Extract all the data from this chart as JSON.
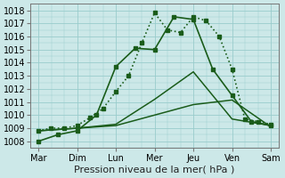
{
  "background_color": "#cce8e8",
  "grid_color": "#99cccc",
  "line_color": "#1a5c1a",
  "xlabel": "Pression niveau de la mer( hPa )",
  "xlabels": [
    "Mar",
    "Dim",
    "Lun",
    "Mer",
    "Jeu",
    "Ven",
    "Sam"
  ],
  "x_positions": [
    0,
    1,
    2,
    3,
    4,
    5,
    6
  ],
  "ylim": [
    1007.5,
    1018.5
  ],
  "yticks": [
    1008,
    1009,
    1010,
    1011,
    1012,
    1013,
    1014,
    1015,
    1016,
    1017,
    1018
  ],
  "series": [
    {
      "x": [
        0,
        0.33,
        0.67,
        1.0,
        1.33,
        1.67,
        2.0,
        2.33,
        2.67,
        3.0,
        3.33,
        3.67,
        4.0,
        4.33,
        4.67,
        5.0,
        5.33,
        5.67,
        6.0
      ],
      "y": [
        1008.8,
        1009.0,
        1009.0,
        1009.2,
        1009.8,
        1010.5,
        1011.8,
        1013.0,
        1015.5,
        1017.8,
        1016.5,
        1016.3,
        1017.5,
        1017.2,
        1016.0,
        1013.5,
        1009.7,
        1009.5,
        1009.3
      ],
      "marker": "s",
      "markersize": 2.5,
      "linestyle": ":",
      "linewidth": 1.2
    },
    {
      "x": [
        0,
        0.5,
        1.0,
        1.5,
        2.0,
        2.5,
        3.0,
        3.5,
        4.0,
        4.5,
        5.0,
        5.5,
        6.0
      ],
      "y": [
        1008.0,
        1008.5,
        1008.8,
        1010.0,
        1013.7,
        1015.1,
        1015.0,
        1017.5,
        1017.3,
        1013.5,
        1011.5,
        1009.5,
        1009.2
      ],
      "marker": "s",
      "markersize": 2.5,
      "linestyle": "-",
      "linewidth": 1.2
    },
    {
      "x": [
        0,
        1,
        2,
        3,
        4,
        5,
        6
      ],
      "y": [
        1008.8,
        1009.0,
        1009.3,
        1011.2,
        1013.3,
        1009.7,
        1009.2
      ],
      "marker": null,
      "markersize": 0,
      "linestyle": "-",
      "linewidth": 1.1
    },
    {
      "x": [
        0,
        1,
        2,
        3,
        4,
        5,
        6
      ],
      "y": [
        1008.8,
        1009.0,
        1009.2,
        1010.0,
        1010.8,
        1011.15,
        1009.1
      ],
      "marker": null,
      "markersize": 0,
      "linestyle": "-",
      "linewidth": 1.1
    }
  ],
  "xlabel_fontsize": 8,
  "tick_fontsize": 7,
  "figsize": [
    3.2,
    2.0
  ],
  "dpi": 100
}
